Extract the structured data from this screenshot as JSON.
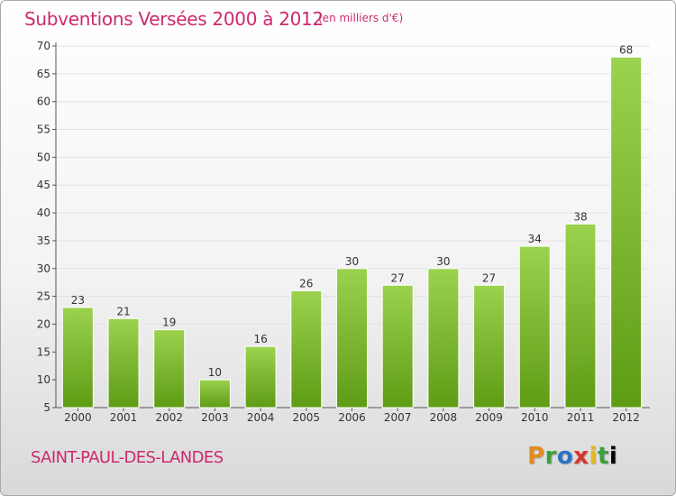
{
  "header": {
    "title": "Subventions Versées 2000 à 2012",
    "subtitle": "(en milliers d'€)"
  },
  "footer": {
    "commune": "SAINT-PAUL-DES-LANDES",
    "logo_letters": [
      "P",
      "r",
      "o",
      "x",
      "i",
      "t",
      "i"
    ]
  },
  "colors": {
    "title": "#cc2a6f",
    "bar_top": "#9bd24e",
    "bar_bottom": "#5e9c14"
  },
  "chart_data": {
    "type": "bar",
    "title": "Subventions Versées 2000 à 2012",
    "subtitle": "(en milliers d'€)",
    "categories": [
      "2000",
      "2001",
      "2002",
      "2003",
      "2004",
      "2005",
      "2006",
      "2007",
      "2008",
      "2009",
      "2010",
      "2011",
      "2012"
    ],
    "values": [
      23,
      21,
      19,
      10,
      16,
      26,
      30,
      27,
      30,
      27,
      34,
      38,
      68
    ],
    "ylim": [
      5,
      70
    ],
    "yticks": [
      5,
      10,
      15,
      20,
      25,
      30,
      35,
      40,
      45,
      50,
      55,
      60,
      65,
      70
    ],
    "grid": true,
    "data_labels": true
  }
}
